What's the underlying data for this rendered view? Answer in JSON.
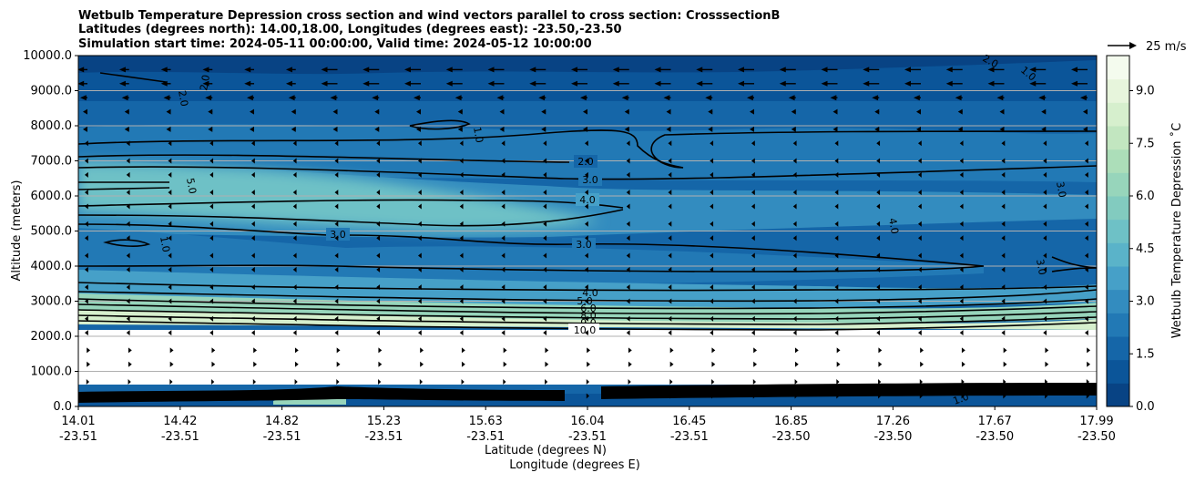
{
  "chart_data": {
    "type": "contour",
    "title_lines": [
      "Wetbulb Temperature Depression cross section and wind vectors parallel to cross section: CrosssectionB",
      "Latitudes (degrees north): 14.00,18.00, Longitudes (degrees east): -23.50,-23.50",
      "Simulation start time: 2024-05-11 00:00:00, Valid time: 2024-05-12 10:00:00"
    ],
    "ylabel": "Altitude (meters)",
    "xlabel_lat": "Latitude (degrees N)",
    "xlabel_lon": "Longitude (degrees E)",
    "ylim": [
      0,
      10000
    ],
    "y_ticks": [
      "0.0",
      "1000.0",
      "2000.0",
      "3000.0",
      "4000.0",
      "5000.0",
      "6000.0",
      "7000.0",
      "8000.0",
      "9000.0",
      "10000.0"
    ],
    "x_ticks": [
      {
        "lat": "14.01",
        "lon": "-23.51",
        "frac": 0.0
      },
      {
        "lat": "14.42",
        "lon": "-23.51",
        "frac": 0.1
      },
      {
        "lat": "14.82",
        "lon": "-23.51",
        "frac": 0.2
      },
      {
        "lat": "15.23",
        "lon": "-23.51",
        "frac": 0.3
      },
      {
        "lat": "15.63",
        "lon": "-23.51",
        "frac": 0.4
      },
      {
        "lat": "16.04",
        "lon": "-23.51",
        "frac": 0.5
      },
      {
        "lat": "16.45",
        "lon": "-23.51",
        "frac": 0.6
      },
      {
        "lat": "16.85",
        "lon": "-23.50",
        "frac": 0.7
      },
      {
        "lat": "17.26",
        "lon": "-23.50",
        "frac": 0.8
      },
      {
        "lat": "17.67",
        "lon": "-23.50",
        "frac": 0.9
      },
      {
        "lat": "17.99",
        "lon": "-23.50",
        "frac": 1.0
      }
    ],
    "colorbar": {
      "label": "Wetbulb Temperature Depression ˚C",
      "min": 0.0,
      "max": 10.0,
      "ticks": [
        "0.0",
        "1.5",
        "3.0",
        "4.5",
        "6.0",
        "7.5",
        "9.0"
      ],
      "tick_values": [
        0.0,
        1.5,
        3.0,
        4.5,
        6.0,
        7.5,
        9.0
      ],
      "colors": [
        "#084384",
        "#0b5599",
        "#1566a8",
        "#2279b5",
        "#338cbf",
        "#46a0c8",
        "#5ab3c9",
        "#6ec1c6",
        "#82cbbf",
        "#97d5bb",
        "#acdeb9",
        "#c2e6c0",
        "#d6efcd",
        "#e7f5dc",
        "#f4fbee"
      ]
    },
    "quiver_key": {
      "label": "25 m/s",
      "speed": 25
    },
    "contour_levels": [
      "1.0",
      "2.0",
      "3.0",
      "4.0",
      "5.0",
      "6.0",
      "7.0",
      "8.0",
      "9.0",
      "10.0"
    ]
  }
}
